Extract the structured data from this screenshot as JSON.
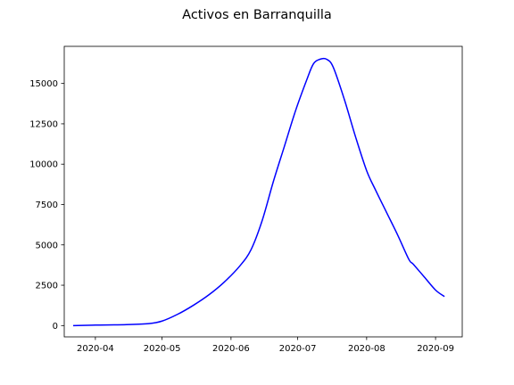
{
  "chart_data": {
    "type": "line",
    "title": "Activos en Barranquilla",
    "xlabel": "",
    "ylabel": "",
    "xlim": [
      "2020-03-18",
      "2020-09-13"
    ],
    "ylim": [
      -700,
      17300
    ],
    "x_ticks": [
      "2020-04-01",
      "2020-05-01",
      "2020-06-01",
      "2020-07-01",
      "2020-08-01",
      "2020-09-01"
    ],
    "x_tick_labels": [
      "2020-04",
      "2020-05",
      "2020-06",
      "2020-07",
      "2020-08",
      "2020-09"
    ],
    "y_ticks": [
      0,
      2500,
      5000,
      7500,
      10000,
      12500,
      15000
    ],
    "y_tick_labels": [
      "0",
      "2500",
      "5000",
      "7500",
      "10000",
      "12500",
      "15000"
    ],
    "grid": false,
    "series": [
      {
        "color": "#0000ff",
        "x": [
          "2020-03-22",
          "2020-04-01",
          "2020-04-15",
          "2020-04-25",
          "2020-05-01",
          "2020-05-08",
          "2020-05-15",
          "2020-05-22",
          "2020-05-29",
          "2020-06-05",
          "2020-06-10",
          "2020-06-15",
          "2020-06-20",
          "2020-06-25",
          "2020-06-30",
          "2020-07-05",
          "2020-07-08",
          "2020-07-11",
          "2020-07-14",
          "2020-07-17",
          "2020-07-22",
          "2020-07-27",
          "2020-08-01",
          "2020-08-05",
          "2020-08-10",
          "2020-08-15",
          "2020-08-20",
          "2020-08-22",
          "2020-08-27",
          "2020-09-01",
          "2020-09-05"
        ],
        "y": [
          0,
          30,
          60,
          120,
          280,
          700,
          1250,
          1900,
          2700,
          3700,
          4700,
          6500,
          8900,
          11100,
          13300,
          15200,
          16200,
          16500,
          16500,
          16000,
          14000,
          11700,
          9600,
          8400,
          7000,
          5600,
          4100,
          3800,
          3000,
          2200,
          1800
        ]
      }
    ]
  }
}
